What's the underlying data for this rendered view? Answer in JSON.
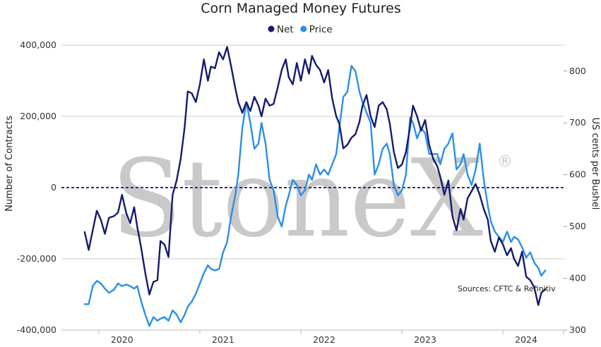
{
  "chart_data": {
    "type": "line",
    "title": "Corn Managed Money Futures",
    "ylabel": "Number of Contracts",
    "y2label": "US cents per Bushel",
    "ylim": [
      -400000,
      400000
    ],
    "y2lim": [
      300,
      850
    ],
    "yticks": [
      "400,000",
      "200,000",
      "0",
      "-200,000",
      "-400,000"
    ],
    "y2ticks": [
      "800",
      "700",
      "600",
      "500",
      "400",
      "300"
    ],
    "xticks": [
      "2020",
      "2021",
      "2022",
      "2023",
      "2024"
    ],
    "grid": "horizontal",
    "legend_position": "top-center",
    "source": "Sources: CFTC & Refinitiv",
    "watermark": "StoneX",
    "watermark_mark": "®",
    "series": [
      {
        "name": "Net",
        "axis": "left",
        "color": "#141b6e",
        "x": [
          2019.63,
          2019.67,
          2019.71,
          2019.75,
          2019.79,
          2019.83,
          2019.87,
          2019.92,
          2019.96,
          2020.0,
          2020.04,
          2020.08,
          2020.12,
          2020.15,
          2020.19,
          2020.23,
          2020.27,
          2020.31,
          2020.35,
          2020.38,
          2020.42,
          2020.46,
          2020.5,
          2020.54,
          2020.58,
          2020.62,
          2020.65,
          2020.69,
          2020.73,
          2020.77,
          2020.81,
          2020.85,
          2020.88,
          2020.92,
          2020.96,
          2021.0,
          2021.04,
          2021.08,
          2021.12,
          2021.15,
          2021.19,
          2021.23,
          2021.27,
          2021.31,
          2021.35,
          2021.38,
          2021.42,
          2021.46,
          2021.5,
          2021.54,
          2021.58,
          2021.62,
          2021.65,
          2021.69,
          2021.73,
          2021.77,
          2021.81,
          2021.85,
          2021.88,
          2021.92,
          2021.96,
          2022.0,
          2022.04,
          2022.08,
          2022.12,
          2022.15,
          2022.19,
          2022.23,
          2022.27,
          2022.31,
          2022.35,
          2022.38,
          2022.42,
          2022.46,
          2022.5,
          2022.54,
          2022.58,
          2022.62,
          2022.65,
          2022.69,
          2022.73,
          2022.77,
          2022.81,
          2022.85,
          2022.88,
          2022.92,
          2022.96,
          2023.0,
          2023.04,
          2023.08,
          2023.12,
          2023.15,
          2023.19,
          2023.23,
          2023.27,
          2023.31,
          2023.35,
          2023.38,
          2023.42,
          2023.46,
          2023.5,
          2023.54,
          2023.58,
          2023.62,
          2023.65,
          2023.69,
          2023.73,
          2023.77,
          2023.81,
          2023.85,
          2023.88,
          2023.92,
          2023.96,
          2024.0,
          2024.04,
          2024.08,
          2024.12,
          2024.15,
          2024.19
        ],
        "y": [
          -125000,
          -175000,
          -120000,
          -65000,
          -90000,
          -130000,
          -85000,
          -80000,
          -70000,
          -20000,
          -70000,
          -100000,
          -55000,
          -110000,
          -170000,
          -240000,
          -300000,
          -265000,
          -260000,
          -150000,
          -160000,
          -195000,
          -20000,
          20000,
          80000,
          170000,
          270000,
          265000,
          240000,
          290000,
          360000,
          300000,
          340000,
          335000,
          380000,
          360000,
          395000,
          340000,
          280000,
          240000,
          210000,
          240000,
          215000,
          255000,
          230000,
          200000,
          250000,
          230000,
          235000,
          280000,
          330000,
          360000,
          310000,
          290000,
          350000,
          300000,
          360000,
          320000,
          370000,
          345000,
          330000,
          295000,
          330000,
          250000,
          200000,
          180000,
          110000,
          120000,
          140000,
          150000,
          185000,
          230000,
          260000,
          200000,
          170000,
          230000,
          240000,
          220000,
          180000,
          100000,
          55000,
          65000,
          100000,
          170000,
          230000,
          200000,
          160000,
          190000,
          120000,
          80000,
          60000,
          30000,
          -20000,
          20000,
          -80000,
          -120000,
          -60000,
          -90000,
          -30000,
          -10000,
          10000,
          -20000,
          -60000,
          -90000,
          -150000,
          -180000,
          -140000,
          -160000,
          -190000,
          -170000,
          -200000,
          -220000,
          -180000,
          -250000,
          -260000,
          -280000,
          -330000,
          -295000,
          -285000
        ]
      },
      {
        "name": "Price",
        "axis": "right",
        "color": "#2b8fe6",
        "x": [
          2019.63,
          2019.67,
          2019.71,
          2019.75,
          2019.79,
          2019.83,
          2019.87,
          2019.92,
          2019.96,
          2020.0,
          2020.04,
          2020.08,
          2020.12,
          2020.15,
          2020.19,
          2020.23,
          2020.27,
          2020.31,
          2020.35,
          2020.38,
          2020.42,
          2020.46,
          2020.5,
          2020.54,
          2020.58,
          2020.62,
          2020.65,
          2020.69,
          2020.73,
          2020.77,
          2020.81,
          2020.85,
          2020.88,
          2020.92,
          2020.96,
          2021.0,
          2021.04,
          2021.08,
          2021.12,
          2021.15,
          2021.19,
          2021.23,
          2021.27,
          2021.31,
          2021.35,
          2021.38,
          2021.42,
          2021.46,
          2021.5,
          2021.54,
          2021.58,
          2021.62,
          2021.65,
          2021.69,
          2021.73,
          2021.77,
          2021.81,
          2021.85,
          2021.88,
          2021.92,
          2021.96,
          2022.0,
          2022.04,
          2022.08,
          2022.12,
          2022.15,
          2022.19,
          2022.23,
          2022.27,
          2022.31,
          2022.35,
          2022.38,
          2022.42,
          2022.46,
          2022.5,
          2022.54,
          2022.58,
          2022.62,
          2022.65,
          2022.69,
          2022.73,
          2022.77,
          2022.81,
          2022.85,
          2022.88,
          2022.92,
          2022.96,
          2023.0,
          2023.04,
          2023.08,
          2023.12,
          2023.15,
          2023.19,
          2023.23,
          2023.27,
          2023.31,
          2023.35,
          2023.38,
          2023.42,
          2023.46,
          2023.5,
          2023.54,
          2023.58,
          2023.62,
          2023.65,
          2023.69,
          2023.73,
          2023.77,
          2023.81,
          2023.85,
          2023.88,
          2023.92,
          2023.96,
          2024.0,
          2024.04,
          2024.08,
          2024.12,
          2024.15,
          2024.19
        ],
        "y": [
          350,
          350,
          385,
          395,
          390,
          380,
          372,
          378,
          390,
          385,
          388,
          385,
          380,
          385,
          355,
          330,
          308,
          325,
          318,
          322,
          325,
          318,
          338,
          330,
          315,
          330,
          345,
          355,
          370,
          390,
          410,
          425,
          418,
          415,
          418,
          450,
          470,
          520,
          560,
          600,
          690,
          740,
          700,
          650,
          660,
          700,
          660,
          590,
          570,
          520,
          500,
          540,
          560,
          590,
          580,
          560,
          570,
          600,
          590,
          620,
          600,
          610,
          600,
          620,
          640,
          690,
          750,
          760,
          810,
          800,
          760,
          740,
          720,
          700,
          600,
          620,
          650,
          660,
          640,
          580,
          560,
          570,
          600,
          710,
          700,
          670,
          690,
          680,
          640,
          640,
          640,
          620,
          650,
          660,
          680,
          610,
          620,
          640,
          600,
          580,
          610,
          660,
          590,
          540,
          510,
          490,
          480,
          470,
          490,
          470,
          480,
          475,
          460,
          440,
          450,
          430,
          420,
          405,
          415
        ]
      }
    ]
  }
}
